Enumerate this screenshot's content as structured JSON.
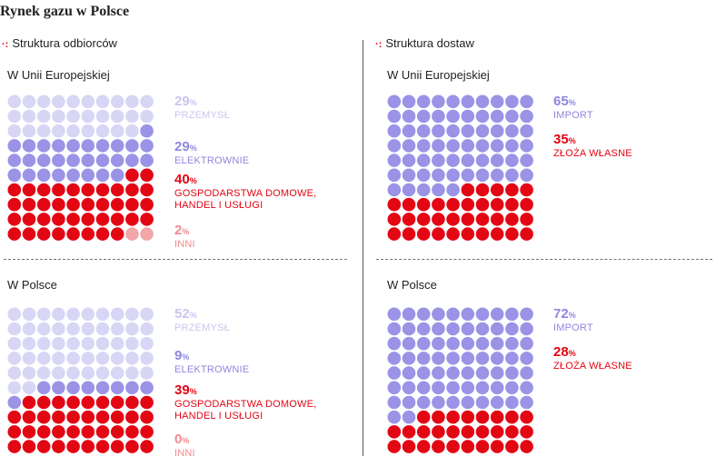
{
  "title": "Rynek gazu w Polsce",
  "colors": {
    "light": "#d8d6f5",
    "purple": "#9b93e6",
    "red": "#e30613",
    "pink": "#f3a6a9"
  },
  "chart_data": [
    {
      "type": "waffle",
      "section": "Struktura odbiorców",
      "region": "W Unii Europejskiej",
      "total_units": 100,
      "segments": [
        {
          "value": 29,
          "unit": "%",
          "label": "PRZEMYSŁ",
          "color": "#d8d6f5",
          "text_color": "#c9c6ef"
        },
        {
          "value": 29,
          "unit": "%",
          "label": "ELEKTROWNIE",
          "color": "#9b93e6",
          "text_color": "#8f87e0"
        },
        {
          "value": 40,
          "unit": "%",
          "label": "GOSPODARSTWA DOMOWE,\nHANDEL I USŁUGI",
          "color": "#e30613",
          "text_color": "#e30613"
        },
        {
          "value": 2,
          "unit": "%",
          "label": "INNI",
          "color": "#f3a6a9",
          "text_color": "#f08b90"
        }
      ]
    },
    {
      "type": "waffle",
      "section": "Struktura odbiorców",
      "region": "W Polsce",
      "total_units": 100,
      "segments": [
        {
          "value": 52,
          "unit": "%",
          "label": "PRZEMYSŁ",
          "color": "#d8d6f5",
          "text_color": "#c9c6ef"
        },
        {
          "value": 9,
          "unit": "%",
          "label": "ELEKTROWNIE",
          "color": "#9b93e6",
          "text_color": "#8f87e0"
        },
        {
          "value": 39,
          "unit": "%",
          "label": "GOSPODARSTWA DOMOWE,\nHANDEL I USŁUGI",
          "color": "#e30613",
          "text_color": "#e30613"
        },
        {
          "value": 0,
          "unit": "%",
          "label": "INNI",
          "color": "#f3a6a9",
          "text_color": "#f08b90"
        }
      ]
    },
    {
      "type": "waffle",
      "section": "Struktura dostaw",
      "region": "W Unii Europejskiej",
      "total_units": 100,
      "segments": [
        {
          "value": 65,
          "unit": "%",
          "label": "IMPORT",
          "color": "#9b93e6",
          "text_color": "#8f87e0"
        },
        {
          "value": 35,
          "unit": "%",
          "label": "ZŁOŻA WŁASNE",
          "color": "#e30613",
          "text_color": "#e30613"
        }
      ]
    },
    {
      "type": "waffle",
      "section": "Struktura dostaw",
      "region": "W Polsce",
      "total_units": 100,
      "segments": [
        {
          "value": 72,
          "unit": "%",
          "label": "IMPORT",
          "color": "#9b93e6",
          "text_color": "#8f87e0"
        },
        {
          "value": 28,
          "unit": "%",
          "label": "ZŁOŻA WŁASNE",
          "color": "#e30613",
          "text_color": "#e30613"
        }
      ]
    }
  ],
  "sections": {
    "left": {
      "heading": "Struktura odbiorców",
      "marker": "·:",
      "top_label": "W Unii Europejskiej",
      "bottom_label": "W Polsce"
    },
    "right": {
      "heading": "Struktura dostaw",
      "marker": "·:",
      "top_label": "W Unii Europejskiej",
      "bottom_label": "W Polsce"
    }
  }
}
